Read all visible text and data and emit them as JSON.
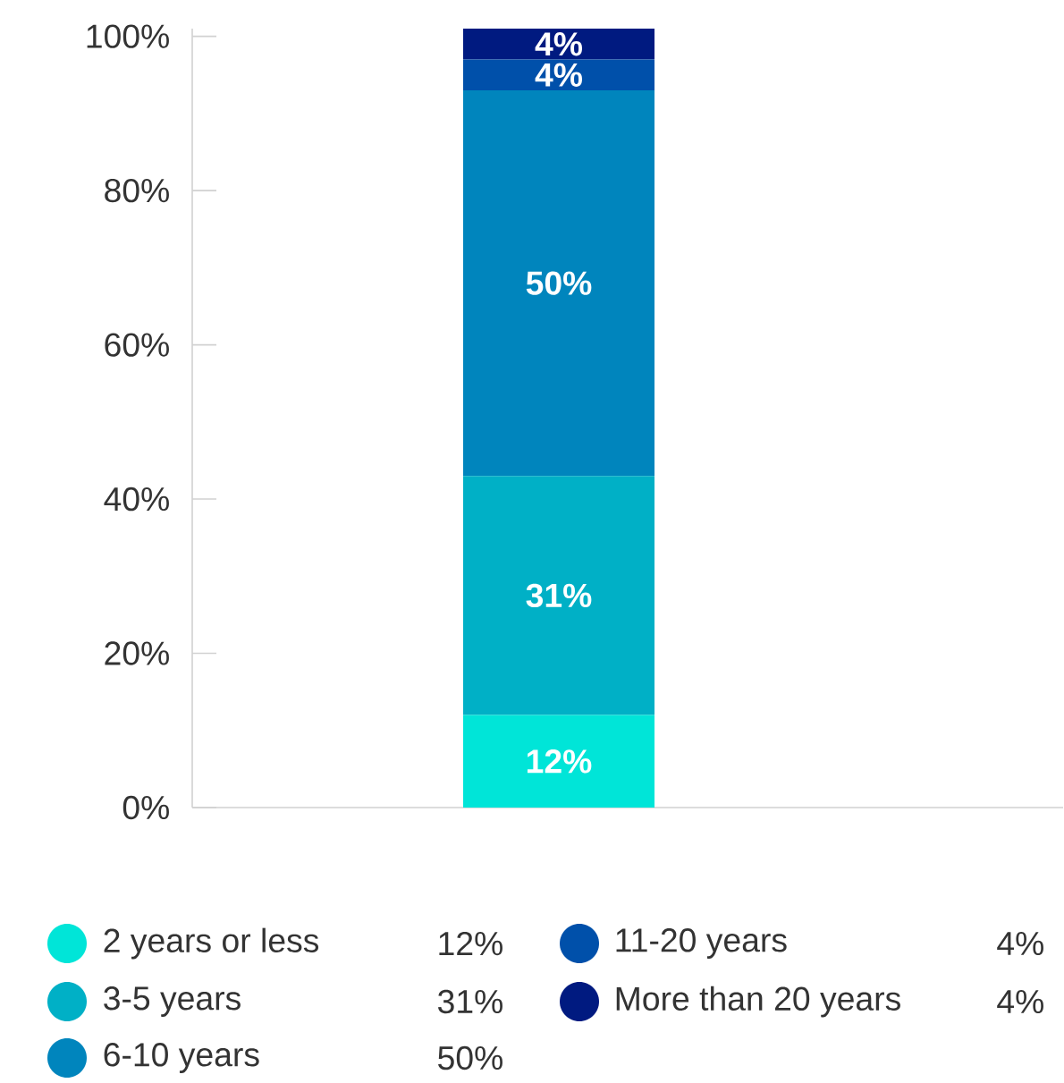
{
  "chart_data": {
    "type": "bar",
    "stacked": true,
    "categories": [
      null
    ],
    "ylim": [
      0,
      101
    ],
    "yticks": [
      {
        "value": 0,
        "label": "0%"
      },
      {
        "value": 20,
        "label": "20%"
      },
      {
        "value": 40,
        "label": "40%"
      },
      {
        "value": 60,
        "label": "60%"
      },
      {
        "value": 80,
        "label": "80%"
      },
      {
        "value": 100,
        "label": "100%"
      }
    ],
    "legend": "bottom",
    "grid": false,
    "series": [
      {
        "name": "2 years or less",
        "color": "#00e5d8",
        "values": [
          12
        ],
        "value_labels": [
          "12%"
        ]
      },
      {
        "name": "3-5 years",
        "color": "#00b0c6",
        "values": [
          31
        ],
        "value_labels": [
          "31%"
        ]
      },
      {
        "name": "6-10 years",
        "color": "#0085bd",
        "values": [
          50
        ],
        "value_labels": [
          "50%"
        ]
      },
      {
        "name": "11-20 years",
        "color": "#0050aa",
        "values": [
          4
        ],
        "value_labels": [
          "4%"
        ]
      },
      {
        "name": "More than 20 years",
        "color": "#001a80",
        "values": [
          4
        ],
        "value_labels": [
          "4%"
        ]
      }
    ]
  }
}
